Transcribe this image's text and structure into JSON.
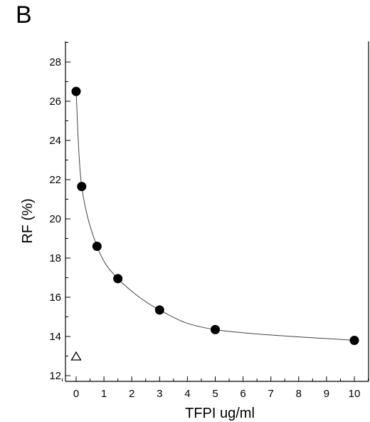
{
  "panel_label": "B",
  "chart_data": {
    "type": "scatter",
    "title": "",
    "xlabel": "TFPI  ug/ml",
    "ylabel": "RF (%)",
    "xlim": [
      -0.5,
      10.5
    ],
    "ylim": [
      12,
      29
    ],
    "x_ticks": [
      0,
      1,
      2,
      3,
      4,
      5,
      6,
      7,
      8,
      9,
      10
    ],
    "y_ticks": [
      12,
      14,
      16,
      18,
      20,
      22,
      24,
      26,
      28
    ],
    "grid": false,
    "series": [
      {
        "marker": "filled-circle",
        "connected": true,
        "color": "#000000",
        "x": [
          0,
          0.2,
          0.75,
          1.5,
          3,
          5,
          10
        ],
        "y": [
          26.5,
          21.65,
          18.6,
          16.95,
          15.35,
          14.35,
          13.8
        ]
      },
      {
        "marker": "open-triangle",
        "connected": false,
        "color": "#000000",
        "x": [
          0
        ],
        "y": [
          13.0
        ]
      }
    ]
  }
}
